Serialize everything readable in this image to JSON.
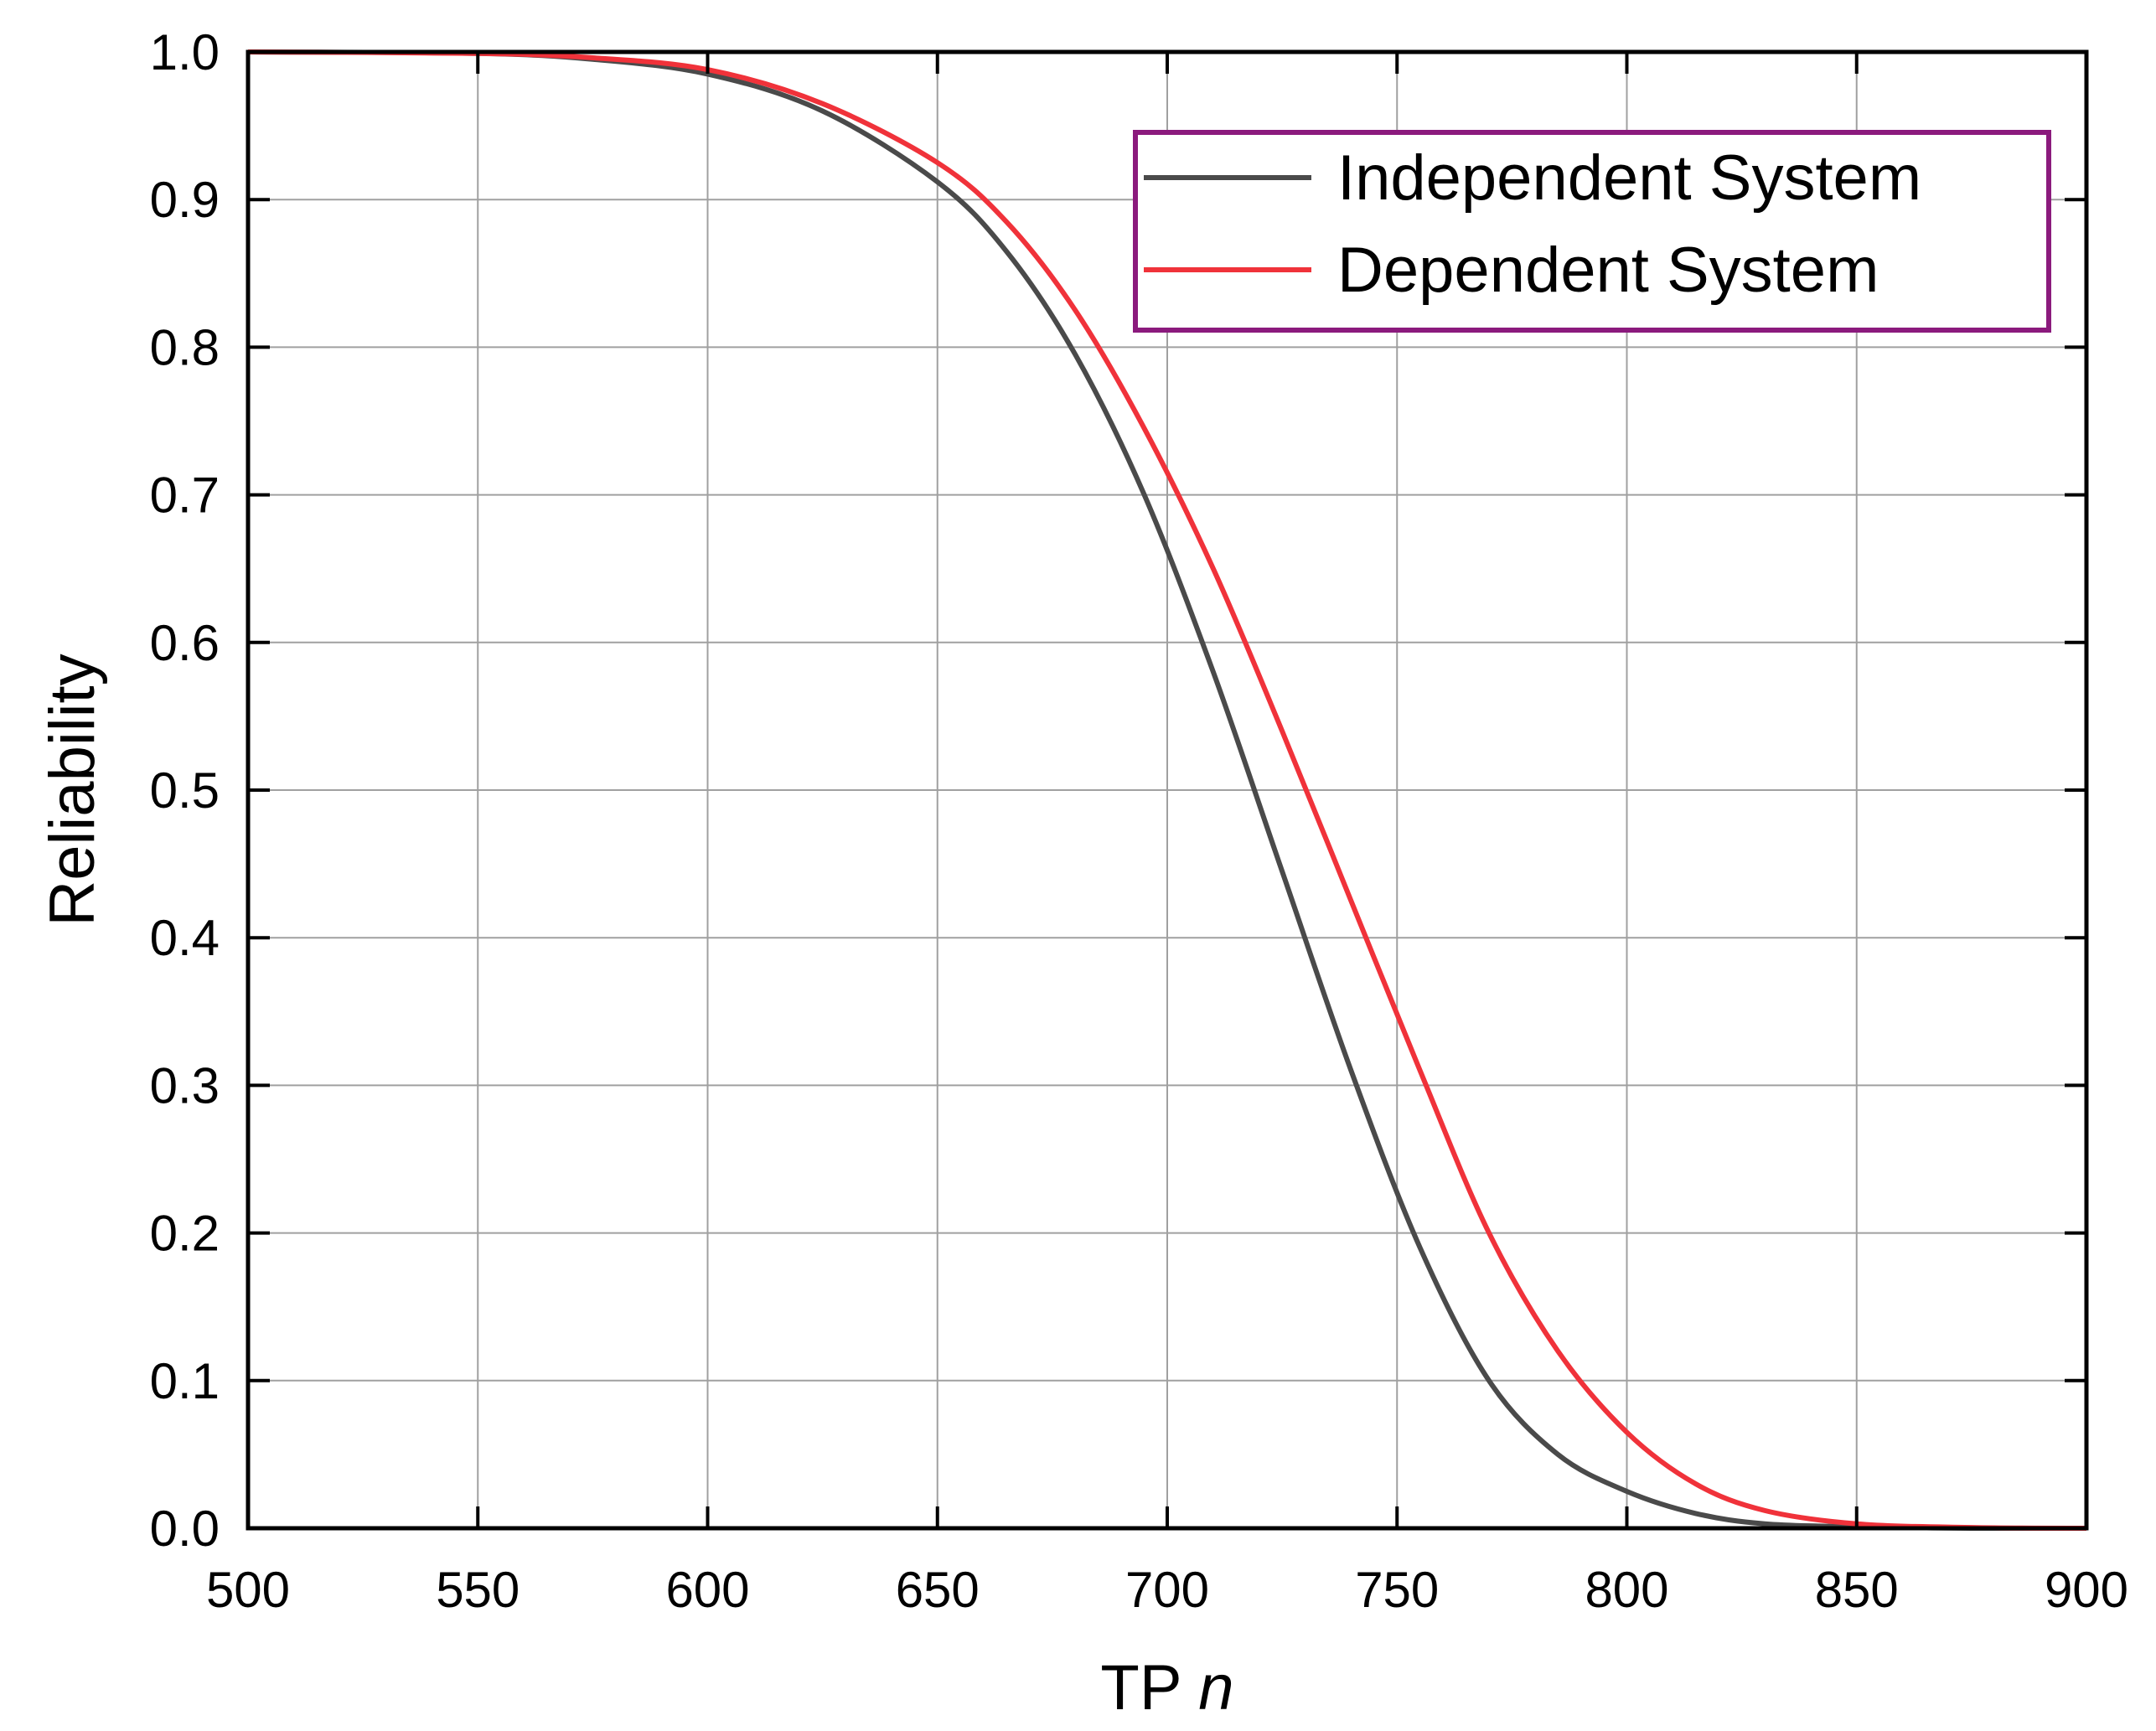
{
  "chart_data": {
    "type": "line",
    "title": "",
    "xlabel": "TP",
    "xlabel_var": "n",
    "ylabel": "Reliability",
    "xlim": [
      500,
      900
    ],
    "ylim": [
      0.0,
      1.0
    ],
    "x_ticks": [
      "500",
      "550",
      "600",
      "650",
      "700",
      "750",
      "800",
      "850",
      "900"
    ],
    "y_ticks": [
      "0.0",
      "0.1",
      "0.2",
      "0.3",
      "0.4",
      "0.5",
      "0.6",
      "0.7",
      "0.8",
      "0.9",
      "1.0"
    ],
    "grid": true,
    "legend_position": "top-right",
    "series": [
      {
        "name": "Independent System",
        "color": "#4a4a4a",
        "x": [
          500,
          550,
          575,
          600,
          625,
          650,
          665,
          680,
          695,
          710,
          725,
          740,
          755,
          770,
          785,
          800,
          815,
          830,
          850,
          875,
          900
        ],
        "y": [
          1.0,
          0.999,
          0.995,
          0.985,
          0.96,
          0.912,
          0.865,
          0.795,
          0.7,
          0.58,
          0.445,
          0.31,
          0.19,
          0.1,
          0.05,
          0.025,
          0.01,
          0.003,
          0.001,
          0.0,
          0.0
        ]
      },
      {
        "name": "Dependent System",
        "color": "#f0323a",
        "x": [
          500,
          550,
          575,
          600,
          625,
          650,
          665,
          680,
          695,
          710,
          725,
          740,
          755,
          770,
          785,
          800,
          815,
          830,
          850,
          875,
          900
        ],
        "y": [
          1.0,
          0.999,
          0.996,
          0.988,
          0.965,
          0.925,
          0.885,
          0.825,
          0.745,
          0.65,
          0.54,
          0.425,
          0.31,
          0.2,
          0.12,
          0.065,
          0.03,
          0.012,
          0.003,
          0.0005,
          0.0
        ]
      }
    ]
  },
  "colors": {
    "legend_border": "#8b1a7d",
    "grid": "#a0a0a0",
    "axis": "#000000"
  }
}
